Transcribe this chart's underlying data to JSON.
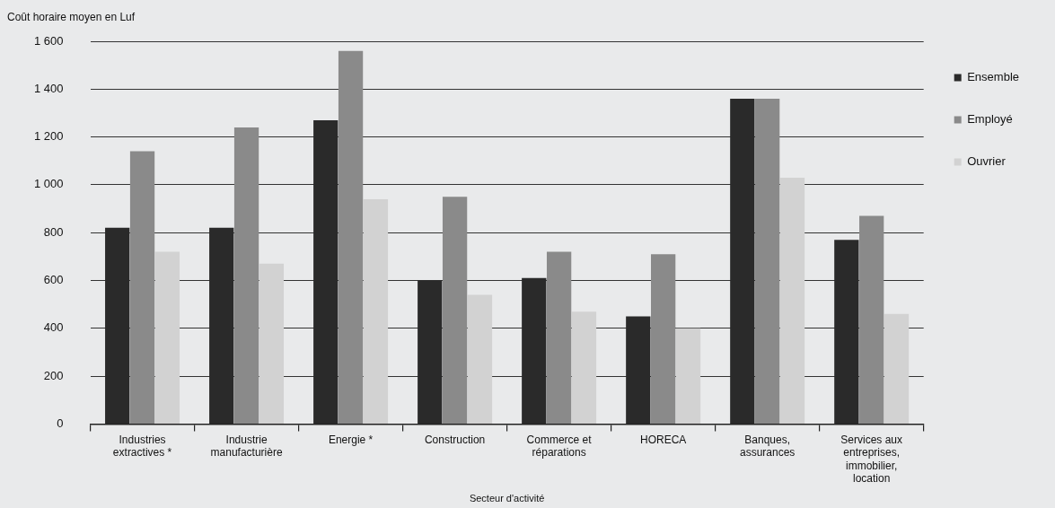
{
  "chart_data": {
    "type": "bar",
    "ylabel": "Coût horaire moyen en Luf",
    "xlabel": "Secteur d'activité",
    "categories": [
      "Industries extractives *",
      "Industrie manufacturière",
      "Energie *",
      "Construction",
      "Commerce et réparations",
      "HORECA",
      "Banques, assurances",
      "Services aux entreprises, immobilier, location"
    ],
    "series": [
      {
        "name": "Ensemble",
        "color": "#2a2a2a",
        "values": [
          820,
          820,
          1270,
          600,
          610,
          450,
          1360,
          770
        ]
      },
      {
        "name": "Employé",
        "color": "#8a8a8a",
        "values": [
          1140,
          1240,
          1560,
          950,
          720,
          710,
          1360,
          870
        ]
      },
      {
        "name": "Ouvrier",
        "color": "#d2d2d2",
        "values": [
          720,
          670,
          940,
          540,
          470,
          400,
          1030,
          460
        ]
      }
    ],
    "ylim": [
      0,
      1600
    ],
    "yticks": [
      {
        "value": 0,
        "label": "0"
      },
      {
        "value": 200,
        "label": "200"
      },
      {
        "value": 400,
        "label": "400"
      },
      {
        "value": 600,
        "label": "600"
      },
      {
        "value": 800,
        "label": "800"
      },
      {
        "value": 1000,
        "label": "1 000"
      },
      {
        "value": 1200,
        "label": "1 200"
      },
      {
        "value": 1400,
        "label": "1 400"
      },
      {
        "value": 1600,
        "label": "1 600"
      }
    ],
    "grid": "y",
    "legend": "top right"
  }
}
